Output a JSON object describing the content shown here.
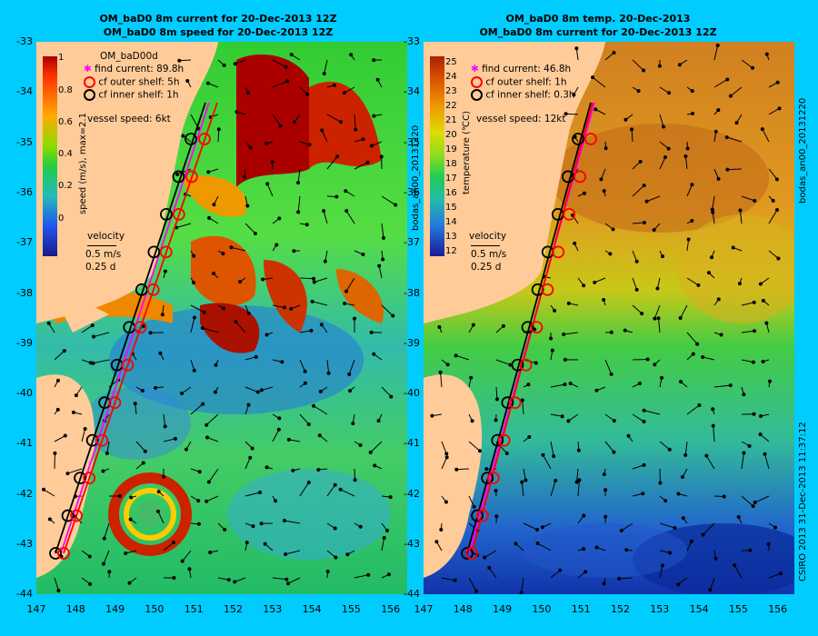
{
  "left": {
    "title1": "OM_baD0 8m current for 20-Dec-2013 12Z",
    "title2": "OM_baD0 8m speed for 20-Dec-2013 12Z",
    "model": "OM_baD00d",
    "legend": [
      "find current: 89.8h",
      "cf outer shelf: 5h",
      "cf inner shelf: 1h"
    ],
    "vessel": "vessel speed: 6kt",
    "velocity": "velocity",
    "vel_scale": "0.5 m/s",
    "vel_time": "0.25 d",
    "colorbar_label": "speed (m/s), max=2.1",
    "colorbar_ticks": [
      "1",
      "0.8",
      "0.6",
      "0.4",
      "0.2",
      "0"
    ],
    "side_label": "bodas_an00_20131220"
  },
  "right": {
    "title1": "OM_baD0 8m temp. 20-Dec-2013",
    "title2": "OM_baD0 8m current for 20-Dec-2013 12Z",
    "legend": [
      "find current: 46.8h",
      "cf outer shelf: 1h",
      "cf inner shelf: 0.3h"
    ],
    "vessel": "vessel speed: 12kt",
    "velocity": "velocity",
    "vel_scale": "0.5 m/s",
    "vel_time": "0.25 d",
    "colorbar_label": "temperature (℃C)",
    "colorbar_ticks": [
      "25",
      "24",
      "23",
      "22",
      "21",
      "20",
      "19",
      "18",
      "17",
      "16",
      "15",
      "14",
      "13",
      "12"
    ],
    "side_label": "bodas_an00_20131220",
    "credit": "CSIRO 2013   31-Dec-2013 11:37:12"
  },
  "y_ticks": [
    "-33",
    "-34",
    "-35",
    "-36",
    "-37",
    "-38",
    "-39",
    "-40",
    "-41",
    "-42",
    "-43",
    "-44"
  ],
  "x_ticks": [
    "147",
    "148",
    "149",
    "150",
    "151",
    "152",
    "153",
    "154",
    "155",
    "156"
  ],
  "colors": {
    "background": "#00ccff",
    "land": "#ffcc99",
    "find": "#ff00ff",
    "outer": "#ff0000",
    "inner": "#000000"
  }
}
